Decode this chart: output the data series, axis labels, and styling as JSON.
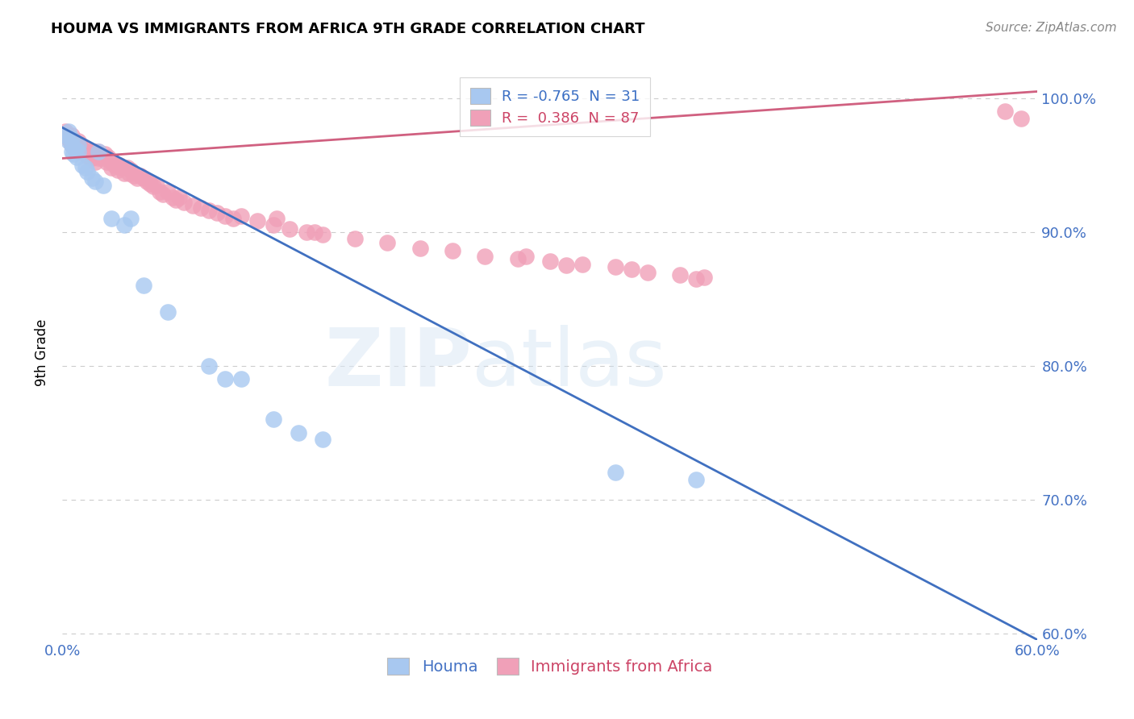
{
  "title": "HOUMA VS IMMIGRANTS FROM AFRICA 9TH GRADE CORRELATION CHART",
  "source": "Source: ZipAtlas.com",
  "ylabel": "9th Grade",
  "xlim": [
    0.0,
    0.6
  ],
  "ylim": [
    0.595,
    1.025
  ],
  "ytick_positions": [
    0.6,
    0.7,
    0.8,
    0.9,
    1.0
  ],
  "ytick_labels": [
    "60.0%",
    "70.0%",
    "80.0%",
    "90.0%",
    "100.0%"
  ],
  "xtick_positions": [
    0.0,
    0.1,
    0.2,
    0.3,
    0.4,
    0.5,
    0.6
  ],
  "xtick_labels": [
    "0.0%",
    "",
    "",
    "",
    "",
    "",
    "60.0%"
  ],
  "legend_R_houma": "-0.765",
  "legend_N_houma": "31",
  "legend_R_africa": "0.386",
  "legend_N_africa": "87",
  "houma_color": "#a8c8f0",
  "africa_color": "#f0a0b8",
  "houma_line_color": "#4070c0",
  "africa_line_color": "#d06080",
  "houma_line_x0": 0.0,
  "houma_line_y0": 0.978,
  "houma_line_x1": 0.6,
  "houma_line_y1": 0.595,
  "africa_line_x0": 0.0,
  "africa_line_y0": 0.955,
  "africa_line_x1": 0.6,
  "africa_line_y1": 1.005,
  "houma_x": [
    0.002,
    0.004,
    0.004,
    0.006,
    0.006,
    0.006,
    0.007,
    0.008,
    0.009,
    0.01,
    0.01,
    0.012,
    0.014,
    0.015,
    0.018,
    0.02,
    0.022,
    0.025,
    0.03,
    0.038,
    0.042,
    0.05,
    0.065,
    0.09,
    0.1,
    0.11,
    0.13,
    0.145,
    0.16,
    0.34,
    0.39
  ],
  "houma_y": [
    0.972,
    0.975,
    0.968,
    0.97,
    0.965,
    0.96,
    0.958,
    0.962,
    0.956,
    0.96,
    0.965,
    0.95,
    0.948,
    0.945,
    0.94,
    0.938,
    0.96,
    0.935,
    0.91,
    0.905,
    0.91,
    0.86,
    0.84,
    0.8,
    0.79,
    0.79,
    0.76,
    0.75,
    0.745,
    0.72,
    0.715
  ],
  "africa_x": [
    0.002,
    0.003,
    0.004,
    0.005,
    0.006,
    0.006,
    0.007,
    0.008,
    0.008,
    0.009,
    0.01,
    0.01,
    0.011,
    0.012,
    0.013,
    0.014,
    0.015,
    0.016,
    0.017,
    0.018,
    0.019,
    0.02,
    0.02,
    0.022,
    0.022,
    0.024,
    0.025,
    0.026,
    0.027,
    0.028,
    0.03,
    0.03,
    0.032,
    0.034,
    0.035,
    0.036,
    0.038,
    0.04,
    0.041,
    0.042,
    0.044,
    0.046,
    0.048,
    0.05,
    0.052,
    0.054,
    0.056,
    0.058,
    0.06,
    0.062,
    0.065,
    0.068,
    0.07,
    0.072,
    0.075,
    0.08,
    0.085,
    0.09,
    0.095,
    0.1,
    0.105,
    0.11,
    0.12,
    0.13,
    0.14,
    0.15,
    0.16,
    0.18,
    0.2,
    0.22,
    0.24,
    0.26,
    0.28,
    0.3,
    0.32,
    0.34,
    0.35,
    0.36,
    0.38,
    0.395,
    0.31,
    0.285,
    0.155,
    0.132,
    0.39,
    0.58,
    0.59
  ],
  "africa_y": [
    0.975,
    0.972,
    0.97,
    0.968,
    0.972,
    0.965,
    0.968,
    0.965,
    0.962,
    0.965,
    0.968,
    0.962,
    0.965,
    0.96,
    0.963,
    0.958,
    0.96,
    0.956,
    0.96,
    0.955,
    0.958,
    0.96,
    0.952,
    0.955,
    0.96,
    0.957,
    0.955,
    0.958,
    0.952,
    0.956,
    0.952,
    0.948,
    0.95,
    0.946,
    0.95,
    0.948,
    0.944,
    0.948,
    0.944,
    0.946,
    0.942,
    0.94,
    0.942,
    0.94,
    0.938,
    0.936,
    0.934,
    0.935,
    0.93,
    0.928,
    0.93,
    0.926,
    0.924,
    0.926,
    0.922,
    0.92,
    0.918,
    0.916,
    0.914,
    0.912,
    0.91,
    0.912,
    0.908,
    0.905,
    0.902,
    0.9,
    0.898,
    0.895,
    0.892,
    0.888,
    0.886,
    0.882,
    0.88,
    0.878,
    0.876,
    0.874,
    0.872,
    0.87,
    0.868,
    0.866,
    0.875,
    0.882,
    0.9,
    0.91,
    0.865,
    0.99,
    0.985
  ]
}
